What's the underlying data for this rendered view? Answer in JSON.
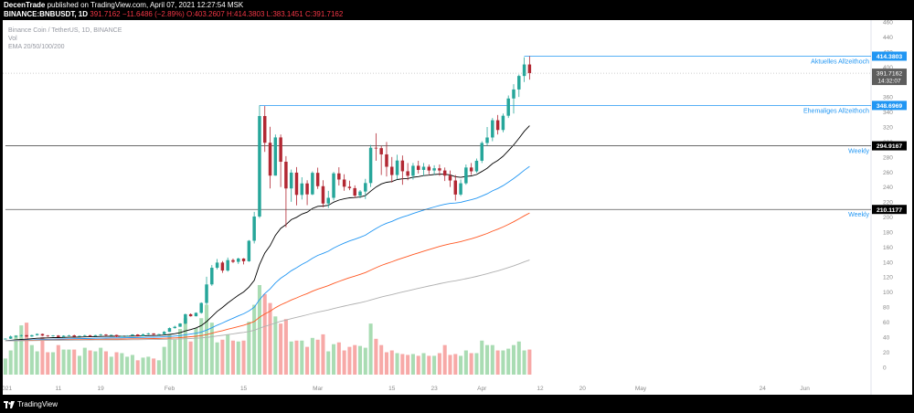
{
  "header": {
    "author": "DecenTrade",
    "published_text": "published on TradingView.com, April 07, 2021 12:27:54 MSK",
    "symbol": "BINANCE:BNBUSDT, 1D",
    "last": "391.7162",
    "change": "−11.6486 (−2.89%)",
    "ohlc_o": "O:403.2607",
    "ohlc_h": "H:414.3803",
    "ohlc_l": "L:383.1451",
    "ohlc_c": "C:391.7162"
  },
  "overlay": {
    "line1": "Binance Coin / TetherUS, 1D, BINANCE",
    "line2": "Vol",
    "line3": "EMA 20/50/100/200"
  },
  "footer": {
    "brand": "TradingView"
  },
  "colors": {
    "up": "#26a69a",
    "down": "#b22833",
    "vol_up": "#a9dcb3",
    "vol_down": "#f7a9a7",
    "ema20": "#000000",
    "ema50": "#2196f3",
    "ema100": "#ff5722",
    "ema200": "#b0b0b0",
    "level_blue": "#2196f3",
    "level_dark": "#555555"
  },
  "chart_data": {
    "type": "candlestick",
    "y_axis_ticks": [
      0,
      20,
      40,
      60,
      80,
      100,
      120,
      140,
      160,
      180,
      200,
      220,
      240,
      260,
      280,
      300,
      320,
      340,
      360,
      380,
      400,
      420,
      440,
      460
    ],
    "ylim": [
      -10,
      460
    ],
    "x_tick_labels": [
      {
        "label": "2021",
        "day": 0
      },
      {
        "label": "11",
        "day": 10
      },
      {
        "label": "19",
        "day": 18
      },
      {
        "label": "Feb",
        "day": 31
      },
      {
        "label": "15",
        "day": 45
      },
      {
        "label": "Mar",
        "day": 59
      },
      {
        "label": "15",
        "day": 73
      },
      {
        "label": "23",
        "day": 81
      },
      {
        "label": "Apr",
        "day": 90
      },
      {
        "label": "12",
        "day": 101
      },
      {
        "label": "20",
        "day": 109
      },
      {
        "label": "May",
        "day": 120
      },
      {
        "label": "24",
        "day": 143
      },
      {
        "label": "Jun",
        "day": 151
      }
    ],
    "xlim": [
      -0.5,
      163.5
    ],
    "ohlc": [
      [
        37.4,
        38.4,
        36.8,
        37.9
      ],
      [
        37.9,
        42.1,
        37.5,
        40.8
      ],
      [
        40.8,
        42.3,
        39.5,
        41.5
      ],
      [
        41.5,
        43.4,
        40.5,
        42.5
      ],
      [
        42.5,
        43.0,
        40.2,
        40.8
      ],
      [
        40.8,
        43.2,
        40.3,
        42.6
      ],
      [
        42.6,
        44.9,
        42.0,
        44.2
      ],
      [
        44.2,
        44.7,
        41.5,
        42.0
      ],
      [
        42.0,
        42.8,
        40.3,
        41.2
      ],
      [
        41.2,
        42.6,
        40.6,
        42.1
      ],
      [
        42.1,
        42.7,
        39.6,
        40.1
      ],
      [
        40.1,
        42.4,
        39.7,
        41.8
      ],
      [
        41.8,
        43.0,
        41.0,
        42.3
      ],
      [
        42.3,
        43.2,
        40.2,
        40.7
      ],
      [
        40.7,
        42.1,
        40.4,
        41.6
      ],
      [
        41.6,
        43.0,
        41.1,
        42.5
      ],
      [
        42.5,
        42.8,
        40.7,
        41.3
      ],
      [
        41.3,
        43.0,
        40.9,
        42.6
      ],
      [
        42.6,
        44.3,
        41.7,
        43.4
      ],
      [
        43.4,
        44.1,
        41.7,
        42.3
      ],
      [
        42.3,
        43.4,
        41.6,
        42.9
      ],
      [
        42.9,
        43.3,
        39.9,
        40.4
      ],
      [
        40.4,
        41.8,
        40.1,
        41.4
      ],
      [
        41.4,
        42.5,
        40.9,
        41.9
      ],
      [
        41.9,
        43.9,
        41.6,
        43.5
      ],
      [
        43.5,
        43.9,
        40.8,
        41.3
      ],
      [
        41.3,
        44.6,
        40.9,
        43.7
      ],
      [
        43.7,
        45.6,
        43.1,
        44.9
      ],
      [
        44.9,
        45.1,
        42.9,
        43.4
      ],
      [
        43.4,
        44.4,
        41.3,
        43.9
      ],
      [
        43.9,
        48.1,
        43.6,
        47.0
      ],
      [
        47.0,
        52.8,
        46.9,
        52.0
      ],
      [
        52.0,
        55.2,
        51.4,
        53.8
      ],
      [
        53.8,
        58.6,
        53.6,
        58.1
      ],
      [
        58.1,
        71.3,
        57.0,
        70.5
      ],
      [
        70.5,
        71.6,
        67.3,
        67.8
      ],
      [
        67.8,
        73.0,
        67.6,
        72.3
      ],
      [
        72.3,
        86.4,
        71.2,
        85.5
      ],
      [
        85.5,
        120.4,
        83.2,
        110.2
      ],
      [
        110.2,
        136.0,
        108.3,
        132.4
      ],
      [
        132.4,
        144.1,
        130.2,
        139.3
      ],
      [
        139.3,
        141.3,
        125.6,
        128.7
      ],
      [
        128.7,
        146.0,
        127.2,
        142.6
      ],
      [
        142.6,
        144.7,
        138.7,
        140.3
      ],
      [
        140.3,
        145.9,
        137.5,
        144.7
      ],
      [
        144.7,
        145.3,
        136.9,
        141.1
      ],
      [
        141.1,
        169.4,
        140.3,
        168.4
      ],
      [
        168.4,
        206.9,
        164.8,
        200.7
      ],
      [
        200.7,
        348.7,
        198.7,
        334.6
      ],
      [
        334.6,
        347.9,
        286.8,
        299.0
      ],
      [
        299.0,
        320.3,
        238.1,
        255.2
      ],
      [
        255.2,
        310.0,
        255.2,
        306.1
      ],
      [
        306.1,
        310.0,
        240.0,
        273.7
      ],
      [
        273.7,
        281.1,
        186.4,
        238.1
      ],
      [
        238.1,
        263.3,
        220.3,
        259.2
      ],
      [
        259.2,
        266.5,
        215.6,
        229.5
      ],
      [
        229.5,
        253.0,
        223.4,
        244.8
      ],
      [
        244.8,
        249.1,
        215.9,
        230.2
      ],
      [
        230.2,
        260.9,
        229.2,
        258.9
      ],
      [
        258.9,
        265.8,
        237.5,
        241.1
      ],
      [
        241.1,
        249.0,
        213.0,
        218.0
      ],
      [
        218.0,
        234.9,
        212.1,
        225.6
      ],
      [
        225.6,
        260.1,
        222.2,
        258.2
      ],
      [
        258.2,
        266.3,
        242.0,
        250.0
      ],
      [
        250.0,
        257.0,
        235.0,
        240.4
      ],
      [
        240.4,
        248.5,
        235.8,
        238.5
      ],
      [
        238.5,
        242.2,
        225.5,
        228.6
      ],
      [
        228.6,
        236.0,
        225.0,
        234.0
      ],
      [
        234.0,
        250.9,
        224.0,
        245.3
      ],
      [
        245.3,
        296.1,
        240.0,
        292.3
      ],
      [
        292.3,
        311.6,
        275.0,
        291.8
      ],
      [
        291.8,
        295.0,
        256.0,
        283.5
      ],
      [
        283.5,
        300.0,
        254.0,
        267.0
      ],
      [
        267.0,
        280.0,
        246.0,
        256.0
      ],
      [
        256.0,
        283.0,
        250.0,
        275.3
      ],
      [
        275.3,
        282.0,
        243.0,
        261.0
      ],
      [
        261.0,
        272.0,
        249.0,
        255.0
      ],
      [
        255.0,
        272.0,
        250.0,
        268.3
      ],
      [
        268.3,
        275.0,
        258.0,
        262.8
      ],
      [
        262.8,
        272.0,
        255.0,
        267.0
      ],
      [
        267.0,
        270.0,
        257.0,
        262.0
      ],
      [
        262.0,
        269.0,
        256.0,
        265.0
      ],
      [
        265.0,
        270.0,
        255.0,
        262.0
      ],
      [
        262.0,
        266.0,
        248.0,
        255.2
      ],
      [
        255.2,
        262.0,
        240.0,
        248.7
      ],
      [
        248.7,
        256.0,
        222.0,
        230.0
      ],
      [
        230.0,
        250.0,
        228.0,
        245.0
      ],
      [
        245.0,
        270.0,
        243.0,
        266.0
      ],
      [
        266.0,
        272.0,
        256.0,
        260.9
      ],
      [
        260.9,
        278.0,
        259.0,
        275.0
      ],
      [
        275.0,
        301.0,
        272.0,
        298.7
      ],
      [
        298.7,
        320.0,
        295.0,
        306.0
      ],
      [
        306.0,
        332.0,
        301.0,
        329.0
      ],
      [
        329.0,
        336.0,
        310.0,
        316.0
      ],
      [
        316.0,
        338.0,
        313.0,
        335.0
      ],
      [
        335.0,
        362.0,
        332.0,
        358.0
      ],
      [
        358.0,
        377.0,
        338.0,
        370.0
      ],
      [
        370.0,
        390.0,
        360.0,
        388.0
      ],
      [
        388.0,
        413.0,
        380.0,
        403.3
      ],
      [
        403.3,
        414.4,
        383.1,
        391.7
      ]
    ],
    "volume_scale": "relative",
    "volume": [
      0.18,
      0.27,
      0.44,
      0.55,
      0.58,
      0.33,
      0.26,
      0.42,
      0.25,
      0.25,
      0.33,
      0.28,
      0.28,
      0.28,
      0.21,
      0.3,
      0.27,
      0.26,
      0.3,
      0.26,
      0.2,
      0.25,
      0.24,
      0.2,
      0.22,
      0.16,
      0.19,
      0.2,
      0.18,
      0.16,
      0.31,
      0.45,
      0.39,
      0.51,
      0.63,
      0.37,
      0.52,
      0.63,
      0.78,
      0.58,
      0.36,
      0.39,
      0.45,
      0.38,
      0.37,
      0.38,
      0.59,
      0.78,
      1.0,
      0.9,
      0.8,
      0.65,
      0.57,
      0.62,
      0.37,
      0.38,
      0.38,
      0.31,
      0.41,
      0.39,
      0.45,
      0.26,
      0.34,
      0.36,
      0.27,
      0.31,
      0.33,
      0.32,
      0.3,
      0.57,
      0.4,
      0.33,
      0.25,
      0.27,
      0.24,
      0.23,
      0.22,
      0.23,
      0.21,
      0.24,
      0.21,
      0.21,
      0.24,
      0.33,
      0.22,
      0.23,
      0.21,
      0.27,
      0.24,
      0.24,
      0.38,
      0.33,
      0.33,
      0.27,
      0.27,
      0.29,
      0.33,
      0.37,
      0.27,
      0.28
    ],
    "levels": [
      {
        "label": "Aktuelles Allzeithoch",
        "value": 414.3803,
        "value_text": "414.3803",
        "from_day": 98,
        "color": "#2196f3"
      },
      {
        "label": "Ehemaliges Allzeithoch",
        "value": 348.6969,
        "value_text": "348.6969",
        "from_day": 48,
        "color": "#2196f3"
      },
      {
        "label": "Weekly",
        "value": 294.9167,
        "value_text": "294.9167",
        "from_day": 0,
        "color": "#555555"
      },
      {
        "label": "Weekly",
        "value": 210.1177,
        "value_text": "210.1177",
        "from_day": 0,
        "color": "#555555"
      }
    ],
    "price_label": {
      "value": 391.7162,
      "value_text": "391.7162",
      "countdown": "14:32:07"
    },
    "ema_lengths": [
      20,
      50,
      100,
      200
    ]
  }
}
